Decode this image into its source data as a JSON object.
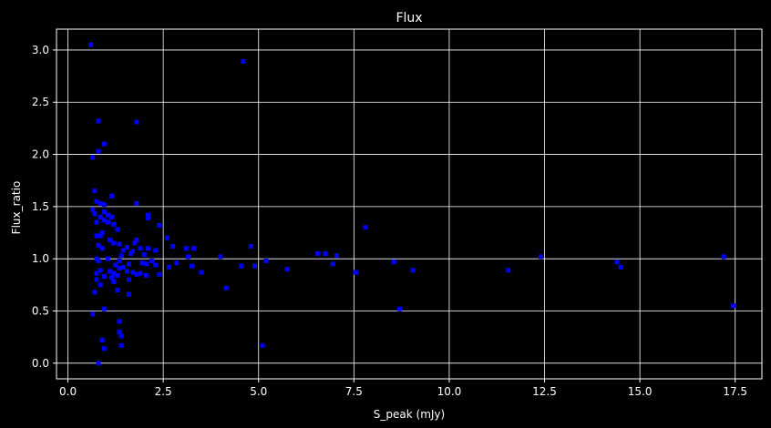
{
  "chart_data": {
    "type": "scatter",
    "title": "Flux",
    "xlabel": "S_peak (mJy)",
    "ylabel": "Flux_ratio",
    "xlim": [
      -0.3,
      18.2
    ],
    "ylim": [
      -0.15,
      3.2
    ],
    "xticks": [
      0.0,
      2.5,
      5.0,
      7.5,
      10.0,
      12.5,
      15.0,
      17.5
    ],
    "xtick_labels": [
      "0.0",
      "2.5",
      "5.0",
      "7.5",
      "10.0",
      "12.5",
      "15.0",
      "17.5"
    ],
    "yticks": [
      0.0,
      0.5,
      1.0,
      1.5,
      2.0,
      2.5,
      3.0
    ],
    "ytick_labels": [
      "0.0",
      "0.5",
      "1.0",
      "1.5",
      "2.0",
      "2.5",
      "3.0"
    ],
    "grid": true,
    "colors": {
      "background": "#000000",
      "marker": "#0000ff",
      "grid": "#ffffff",
      "text": "#ffffff"
    },
    "series": [
      {
        "points": [
          [
            0.6,
            3.05
          ],
          [
            4.6,
            2.89
          ],
          [
            0.8,
            2.32
          ],
          [
            1.8,
            2.31
          ],
          [
            0.95,
            2.1
          ],
          [
            0.8,
            2.03
          ],
          [
            0.65,
            1.97
          ],
          [
            0.7,
            1.65
          ],
          [
            1.15,
            1.6
          ],
          [
            0.75,
            1.55
          ],
          [
            0.85,
            1.53
          ],
          [
            1.8,
            1.53
          ],
          [
            0.95,
            1.52
          ],
          [
            0.65,
            1.47
          ],
          [
            0.95,
            1.45
          ],
          [
            0.7,
            1.43
          ],
          [
            1.05,
            1.42
          ],
          [
            2.1,
            1.42
          ],
          [
            0.85,
            1.4
          ],
          [
            1.15,
            1.4
          ],
          [
            2.1,
            1.39
          ],
          [
            0.95,
            1.37
          ],
          [
            0.75,
            1.35
          ],
          [
            1.05,
            1.35
          ],
          [
            1.2,
            1.33
          ],
          [
            2.4,
            1.32
          ],
          [
            7.8,
            1.3
          ],
          [
            1.3,
            1.28
          ],
          [
            0.9,
            1.25
          ],
          [
            0.75,
            1.22
          ],
          [
            0.85,
            1.22
          ],
          [
            2.6,
            1.2
          ],
          [
            1.1,
            1.18
          ],
          [
            1.8,
            1.18
          ],
          [
            1.2,
            1.15
          ],
          [
            1.75,
            1.15
          ],
          [
            1.35,
            1.14
          ],
          [
            0.8,
            1.13
          ],
          [
            4.8,
            1.12
          ],
          [
            2.75,
            1.12
          ],
          [
            1.55,
            1.11
          ],
          [
            1.9,
            1.1
          ],
          [
            2.1,
            1.1
          ],
          [
            0.9,
            1.1
          ],
          [
            3.1,
            1.1
          ],
          [
            3.3,
            1.1
          ],
          [
            1.45,
            1.08
          ],
          [
            2.3,
            1.08
          ],
          [
            1.7,
            1.07
          ],
          [
            6.55,
            1.05
          ],
          [
            6.75,
            1.05
          ],
          [
            1.65,
            1.05
          ],
          [
            2.0,
            1.04
          ],
          [
            7.05,
            1.03
          ],
          [
            1.4,
            1.03
          ],
          [
            12.4,
            1.02
          ],
          [
            17.2,
            1.02
          ],
          [
            4.0,
            1.02
          ],
          [
            3.15,
            1.02
          ],
          [
            1.05,
            1.0
          ],
          [
            0.75,
            1.0
          ],
          [
            0.8,
            0.98
          ],
          [
            2.2,
            0.98
          ],
          [
            1.35,
            0.98
          ],
          [
            5.2,
            0.98
          ],
          [
            8.55,
            0.97
          ],
          [
            14.4,
            0.97
          ],
          [
            1.95,
            0.96
          ],
          [
            2.85,
            0.96
          ],
          [
            2.05,
            0.95
          ],
          [
            6.95,
            0.95
          ],
          [
            1.6,
            0.95
          ],
          [
            1.25,
            0.94
          ],
          [
            4.55,
            0.93
          ],
          [
            4.9,
            0.93
          ],
          [
            1.45,
            0.92
          ],
          [
            3.25,
            0.93
          ],
          [
            14.5,
            0.92
          ],
          [
            2.3,
            0.94
          ],
          [
            2.65,
            0.92
          ],
          [
            1.35,
            0.91
          ],
          [
            5.75,
            0.9
          ],
          [
            11.55,
            0.89
          ],
          [
            9.05,
            0.89
          ],
          [
            0.85,
            0.89
          ],
          [
            1.1,
            0.88
          ],
          [
            1.55,
            0.88
          ],
          [
            1.7,
            0.87
          ],
          [
            1.9,
            0.86
          ],
          [
            7.55,
            0.87
          ],
          [
            3.5,
            0.87
          ],
          [
            1.2,
            0.86
          ],
          [
            0.75,
            0.86
          ],
          [
            1.8,
            0.85
          ],
          [
            2.4,
            0.85
          ],
          [
            1.3,
            0.84
          ],
          [
            2.05,
            0.84
          ],
          [
            0.95,
            0.83
          ],
          [
            1.15,
            0.82
          ],
          [
            0.75,
            0.8
          ],
          [
            1.6,
            0.8
          ],
          [
            1.2,
            0.78
          ],
          [
            0.85,
            0.75
          ],
          [
            4.15,
            0.72
          ],
          [
            1.3,
            0.7
          ],
          [
            0.7,
            0.68
          ],
          [
            1.6,
            0.66
          ],
          [
            17.45,
            0.55
          ],
          [
            8.7,
            0.52
          ],
          [
            0.95,
            0.52
          ],
          [
            0.65,
            0.47
          ],
          [
            1.35,
            0.4
          ],
          [
            1.35,
            0.3
          ],
          [
            1.4,
            0.26
          ],
          [
            0.9,
            0.22
          ],
          [
            1.4,
            0.17
          ],
          [
            5.1,
            0.17
          ],
          [
            0.95,
            0.14
          ],
          [
            0.8,
            0.0
          ]
        ]
      }
    ]
  }
}
